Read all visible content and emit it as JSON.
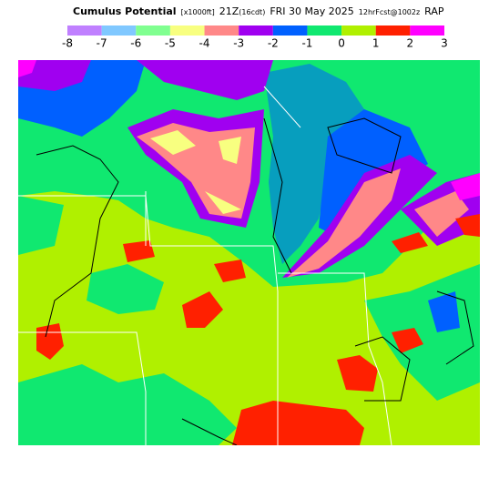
{
  "header": {
    "title": "Cumulus Potential",
    "units": "[x1000ft]",
    "valid": "21Z",
    "local": "(16cdt)",
    "date": "FRI 30 May 2025",
    "forecast": "12hrFcst@1002z",
    "model": "RAP"
  },
  "colorbar": {
    "ticks": [
      -8,
      -7,
      -6,
      -5,
      -4,
      -3,
      -2,
      -1,
      0,
      1,
      2,
      3
    ],
    "colors": [
      "#c080ff",
      "#80c8ff",
      "#80ff90",
      "#f8ff80",
      "#ff8888",
      "#a000f0",
      "#0060ff",
      "#10e870",
      "#b0f000",
      "#ff2000",
      "#ff00ff"
    ]
  }
}
